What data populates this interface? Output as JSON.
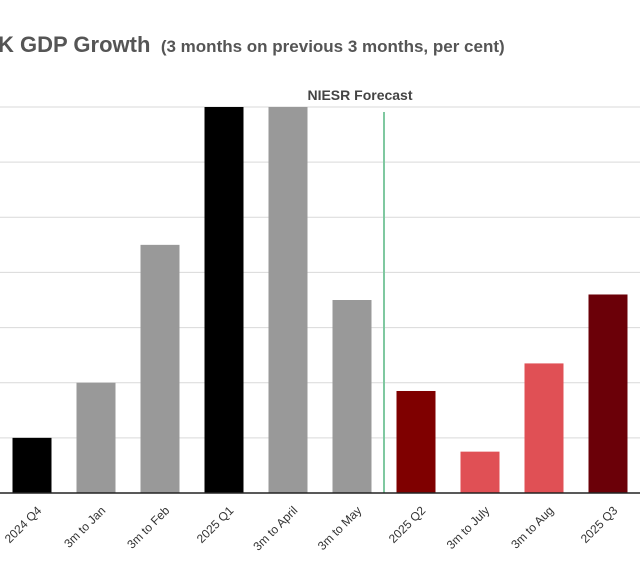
{
  "chart_data": {
    "type": "bar",
    "title": "K GDP Growth",
    "subtitle": "(3 months on previous 3 months, per cent)",
    "annotation": "NIESR Forecast",
    "categories": [
      "2024 Q4",
      "3m to Jan",
      "3m to Feb",
      "2025 Q1",
      "3m to April",
      "3m to May",
      "2025 Q2",
      "3m to July",
      "3m to Aug",
      "2025 Q3"
    ],
    "values": [
      0.1,
      0.2,
      0.45,
      0.7,
      0.7,
      0.35,
      0.185,
      0.075,
      0.235,
      0.36
    ],
    "colors": [
      "#000000",
      "#999999",
      "#999999",
      "#000000",
      "#999999",
      "#999999",
      "#7f0000",
      "#e05055",
      "#e05055",
      "#6b0008"
    ],
    "ylim": [
      0,
      0.7
    ],
    "grid": true,
    "forecast_line_color": "#7fc8a0",
    "xlabel": "",
    "ylabel": ""
  }
}
